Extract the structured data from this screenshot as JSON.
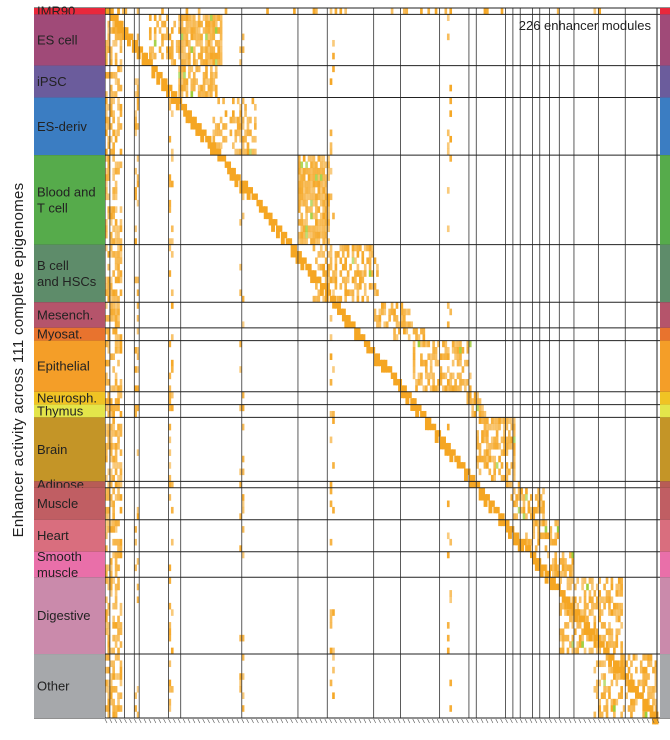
{
  "chart_data": {
    "type": "heatmap",
    "title": "226 enhancer modules",
    "ylabel": "Enhancer activity across 111 complete epigenomes",
    "n_modules": 226,
    "n_epigenomes": 111,
    "cell_color": "#f5a623",
    "secondary_cell_color": "#9acd32",
    "groups": [
      {
        "label": "IMR90",
        "color": "#e8283c",
        "rows": 1
      },
      {
        "label": "ES cell",
        "color": "#a04a78",
        "rows": 8
      },
      {
        "label": "iPSC",
        "color": "#6b5c9c",
        "rows": 5
      },
      {
        "label": "ES-deriv",
        "color": "#3b7dc2",
        "rows": 9
      },
      {
        "label": "Blood and T cell",
        "color": "#56ab4b",
        "rows": 14
      },
      {
        "label": "B cell and HSCs",
        "color": "#5e8c6a",
        "rows": 9
      },
      {
        "label": "Mesench.",
        "color": "#b5546b",
        "rows": 4
      },
      {
        "label": "Myosat.",
        "color": "#e8732e",
        "rows": 2
      },
      {
        "label": "Epithelial",
        "color": "#f49e28",
        "rows": 8
      },
      {
        "label": "Neurosph.",
        "color": "#f0c324",
        "rows": 2
      },
      {
        "label": "Thymus",
        "color": "#e4e54a",
        "rows": 2
      },
      {
        "label": "Brain",
        "color": "#c49527",
        "rows": 10
      },
      {
        "label": "Adipose",
        "color": "#b85c56",
        "rows": 1
      },
      {
        "label": "Muscle",
        "color": "#c05e63",
        "rows": 5
      },
      {
        "label": "Heart",
        "color": "#d96e7e",
        "rows": 5
      },
      {
        "label": "Smooth muscle",
        "color": "#e96fa9",
        "rows": 4
      },
      {
        "label": "Digestive",
        "color": "#ca8aab",
        "rows": 12
      },
      {
        "label": "Other",
        "color": "#a6a8ab",
        "rows": 10
      }
    ],
    "blocks": [
      {
        "group": "IMR90",
        "module_start": 0,
        "module_end": 226,
        "density": 0.12
      },
      {
        "group": "ES cell",
        "module_start": 30,
        "module_end": 48,
        "density": 0.8
      },
      {
        "group": "ES cell",
        "module_start": 16,
        "module_end": 31,
        "density": 0.35
      },
      {
        "group": "iPSC",
        "module_start": 30,
        "module_end": 46,
        "density": 0.75
      },
      {
        "group": "ES-deriv",
        "module_start": 44,
        "module_end": 62,
        "density": 0.4
      },
      {
        "group": "Blood and T cell",
        "module_start": 79,
        "module_end": 92,
        "density": 0.85
      },
      {
        "group": "B cell and HSCs",
        "module_start": 85,
        "module_end": 112,
        "density": 0.45
      },
      {
        "group": "Mesench.",
        "module_start": 110,
        "module_end": 126,
        "density": 0.55
      },
      {
        "group": "Myosat.",
        "module_start": 118,
        "module_end": 132,
        "density": 0.5
      },
      {
        "group": "Epithelial",
        "module_start": 126,
        "module_end": 150,
        "density": 0.55
      },
      {
        "group": "Neurosph.",
        "module_start": 148,
        "module_end": 154,
        "density": 0.65
      },
      {
        "group": "Thymus",
        "module_start": 150,
        "module_end": 156,
        "density": 0.6
      },
      {
        "group": "Brain",
        "module_start": 152,
        "module_end": 168,
        "density": 0.6
      },
      {
        "group": "Adipose",
        "module_start": 164,
        "module_end": 170,
        "density": 0.55
      },
      {
        "group": "Muscle",
        "module_start": 166,
        "module_end": 180,
        "density": 0.5
      },
      {
        "group": "Heart",
        "module_start": 172,
        "module_end": 186,
        "density": 0.5
      },
      {
        "group": "Smooth muscle",
        "module_start": 180,
        "module_end": 192,
        "density": 0.55
      },
      {
        "group": "Digestive",
        "module_start": 186,
        "module_end": 212,
        "density": 0.5
      },
      {
        "group": "Other",
        "module_start": 200,
        "module_end": 226,
        "density": 0.45
      }
    ],
    "common_module_bands": [
      {
        "module_start": 0,
        "module_end": 7,
        "density": 0.55
      },
      {
        "module_start": 12,
        "module_end": 14,
        "density": 0.25
      },
      {
        "module_start": 26,
        "module_end": 28,
        "density": 0.22
      },
      {
        "module_start": 55,
        "module_end": 57,
        "density": 0.18
      },
      {
        "module_start": 92,
        "module_end": 94,
        "density": 0.15
      },
      {
        "module_start": 140,
        "module_end": 142,
        "density": 0.15
      }
    ],
    "module_dividers": [
      2,
      8,
      12,
      14,
      26,
      31,
      56,
      79,
      91,
      110,
      121,
      137,
      149,
      152,
      164,
      167,
      170,
      175,
      178,
      182,
      186,
      192,
      202,
      213,
      226
    ]
  }
}
